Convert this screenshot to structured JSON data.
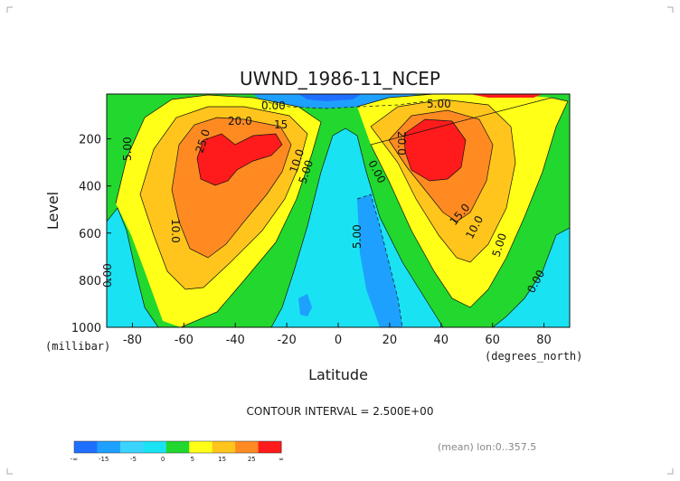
{
  "chart_data": {
    "type": "heatmap",
    "title": "UWND_1986-11_NCEP",
    "xlabel": "Latitude",
    "ylabel": "Level",
    "x_unit": "(degrees_north)",
    "y_unit": "(millibar)",
    "xlim": [
      -90,
      90
    ],
    "ylim": [
      1000,
      10
    ],
    "x_ticks": [
      -80,
      -60,
      -40,
      -20,
      0,
      20,
      40,
      60,
      80
    ],
    "y_ticks": [
      200,
      400,
      600,
      800,
      1000
    ],
    "contour_interval": "CONTOUR INTERVAL = 2.500E+00",
    "contour_labels": [
      "0.00",
      "20.0",
      "15",
      "25.0",
      "10.0",
      "5.00",
      "5.00",
      "0.00",
      "20.0",
      "15.0",
      "10.0",
      "5.00",
      "0.00",
      "5.00",
      "0.00",
      "5.00",
      "10.0",
      "0.00"
    ],
    "colorbar": {
      "ticks": [
        "-∞",
        "-15",
        "-5",
        "0",
        "5",
        "15",
        "25",
        "∞"
      ],
      "colors": [
        "#1f6fff",
        "#1ea0ff",
        "#3ad4ff",
        "#19e3f2",
        "#22d82e",
        "#ffff18",
        "#ffc51c",
        "#ff8a22",
        "#ff1b1b"
      ]
    },
    "jets": [
      {
        "lat": -50,
        "level": 250,
        "u": 27.5
      },
      {
        "lat": 35,
        "level": 200,
        "u": 27.5
      }
    ],
    "footer": "(mean) lon:0..357.5",
    "grid": false
  }
}
